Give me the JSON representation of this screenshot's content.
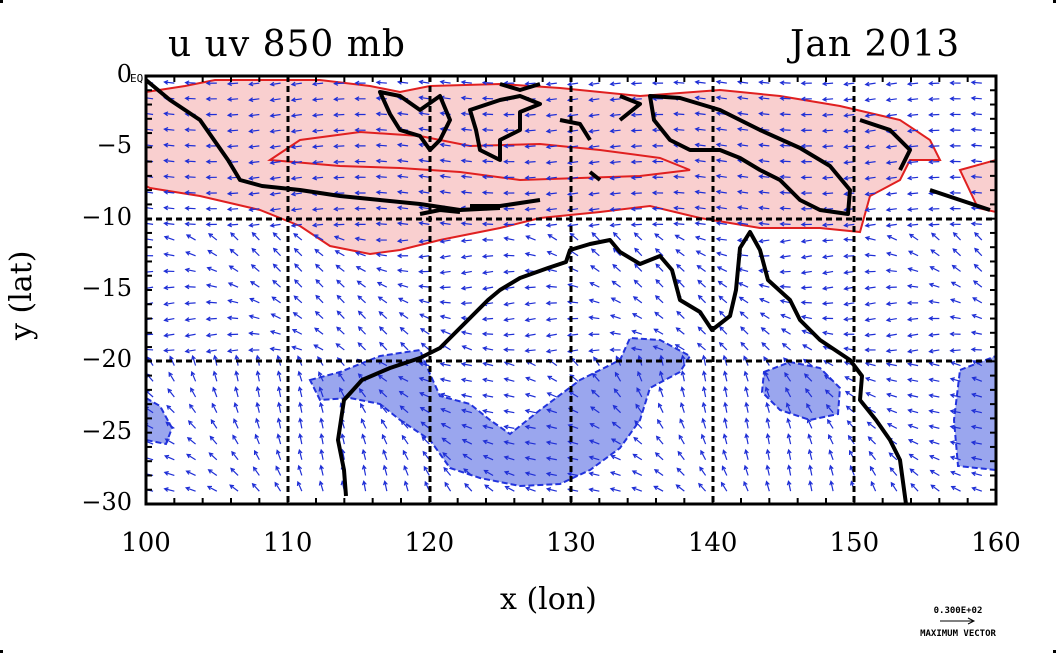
{
  "plot": {
    "title_left": "u uv 850 mb",
    "title_right": "Jan 2013",
    "eq_label": "EQ",
    "xlabel": "x (lon)",
    "ylabel": "y (lat)",
    "max_vector_value": "0.300E+02",
    "max_vector_label": "MAXIMUM VECTOR"
  },
  "chart_data": {
    "type": "heatmap",
    "title": "u uv 850 mb",
    "xlabel": "x (lon)",
    "ylabel": "y (lat)",
    "x_ticks": [
      100,
      110,
      120,
      130,
      140,
      150,
      160
    ],
    "y_ticks": [
      0,
      -5,
      -10,
      -15,
      -20,
      -25,
      -30
    ],
    "y_tick_labels": [
      "0",
      "−5",
      "−10",
      "−15",
      "−20",
      "−25",
      "−30"
    ],
    "xlim": [
      100,
      160
    ],
    "ylim": [
      -30,
      0
    ],
    "grid": true,
    "fields": [
      "u wind shading (positive = red, negative = blue)",
      "uv vector arrows"
    ],
    "colors": {
      "positive": "#f9cfcf",
      "positive_line": "#e02020",
      "negative": "#9aa6ee",
      "negative_line": "#2233dd",
      "vectors": "#1f2fd6",
      "coast": "#000000"
    }
  }
}
